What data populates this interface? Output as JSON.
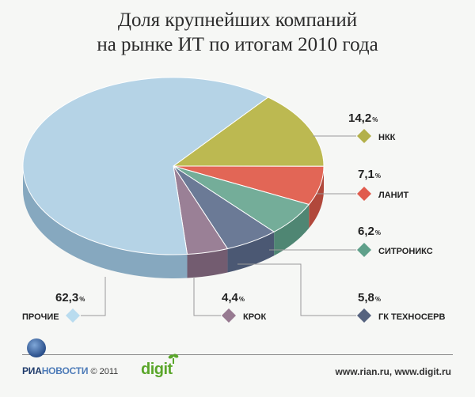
{
  "title": {
    "line1": "Доля крупнейших компаний",
    "line2": "на рынке ИТ по итогам 2010 года"
  },
  "chart_data": {
    "type": "pie",
    "title": "Доля крупнейших компаний на рынке ИТ по итогам 2010 года",
    "unit": "%",
    "slices": [
      {
        "label": "НКК",
        "value": 14.2,
        "display": "14,2",
        "color": "#bcb951",
        "side": "#8f8c34",
        "marker": "#b3b04a"
      },
      {
        "label": "ЛАНИТ",
        "value": 7.1,
        "display": "7,1",
        "color": "#e26656",
        "side": "#b1483b",
        "marker": "#e05b4d"
      },
      {
        "label": "СИТРОНИКС",
        "value": 6.2,
        "display": "6,2",
        "color": "#74ad99",
        "side": "#4f8673",
        "marker": "#5fa08a"
      },
      {
        "label": "ГК ТЕХНОСЕРВ",
        "value": 5.8,
        "display": "5,8",
        "color": "#6b7a96",
        "side": "#4b5873",
        "marker": "#56637f"
      },
      {
        "label": "КРОК",
        "value": 4.4,
        "display": "4,4",
        "color": "#9a8096",
        "side": "#735c70",
        "marker": "#977a91"
      },
      {
        "label": "ПРОЧИЕ",
        "value": 62.3,
        "display": "62,3",
        "color": "#b5d3e6",
        "side": "#86a8bf",
        "marker": "#b9dcef"
      }
    ]
  },
  "footer": {
    "ria_part1": "РИА",
    "ria_part2": "НОВОСТИ",
    "copyright": "© 2011",
    "digit": "digit",
    "urls": "www.rian.ru, www.digit.ru"
  }
}
